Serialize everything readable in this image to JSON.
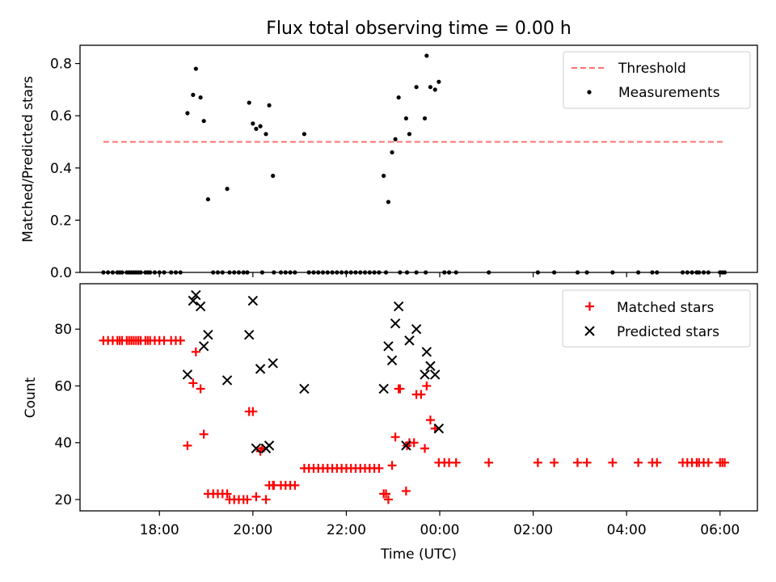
{
  "figure_title": "Flux total observing time = 0.00 h",
  "chart_data": [
    {
      "type": "scatter",
      "ylabel": "Matched/Predicted stars",
      "xlabel": "",
      "ylim": [
        0,
        0.87
      ],
      "yticks": [
        0.0,
        0.2,
        0.4,
        0.6,
        0.8
      ],
      "x_unit": "hours since 00:00 UTC on the first night, 24 = 00:00 next day",
      "xlim": [
        16.3,
        30.8
      ],
      "legend_position": "top-right",
      "legend": [
        "Threshold",
        "Measurements"
      ],
      "threshold": {
        "name": "Threshold",
        "y": 0.5,
        "x": [
          16.8,
          30.1
        ],
        "color": "#ff7070",
        "style": "dashed"
      },
      "series": [
        {
          "name": "Measurements",
          "color": "#000000",
          "marker": "dot",
          "points": [
            [
              16.8,
              0
            ],
            [
              16.9,
              0
            ],
            [
              17.0,
              0
            ],
            [
              17.1,
              0
            ],
            [
              17.15,
              0
            ],
            [
              17.2,
              0
            ],
            [
              17.3,
              0
            ],
            [
              17.35,
              0
            ],
            [
              17.4,
              0
            ],
            [
              17.45,
              0
            ],
            [
              17.5,
              0
            ],
            [
              17.55,
              0
            ],
            [
              17.6,
              0
            ],
            [
              17.7,
              0
            ],
            [
              17.75,
              0
            ],
            [
              17.8,
              0
            ],
            [
              17.9,
              0
            ],
            [
              18.0,
              0
            ],
            [
              18.1,
              0
            ],
            [
              18.25,
              0
            ],
            [
              18.35,
              0
            ],
            [
              18.45,
              0
            ],
            [
              18.6,
              0.61
            ],
            [
              18.72,
              0.68
            ],
            [
              18.78,
              0.78
            ],
            [
              18.88,
              0.67
            ],
            [
              18.95,
              0.58
            ],
            [
              19.04,
              0.28
            ],
            [
              19.15,
              0
            ],
            [
              19.25,
              0
            ],
            [
              19.35,
              0
            ],
            [
              19.5,
              0
            ],
            [
              19.6,
              0
            ],
            [
              19.7,
              0
            ],
            [
              19.8,
              0
            ],
            [
              19.88,
              0
            ],
            [
              19.45,
              0.32
            ],
            [
              19.92,
              0.65
            ],
            [
              20.0,
              0.57
            ],
            [
              20.07,
              0.55
            ],
            [
              20.16,
              0.56
            ],
            [
              20.28,
              0.53
            ],
            [
              20.35,
              0.64
            ],
            [
              20.43,
              0.37
            ],
            [
              20.2,
              0
            ],
            [
              20.45,
              0
            ],
            [
              20.6,
              0
            ],
            [
              20.7,
              0
            ],
            [
              20.8,
              0
            ],
            [
              20.9,
              0
            ],
            [
              21.1,
              0.53
            ],
            [
              21.2,
              0
            ],
            [
              21.3,
              0
            ],
            [
              21.4,
              0
            ],
            [
              21.5,
              0
            ],
            [
              21.6,
              0
            ],
            [
              21.7,
              0
            ],
            [
              21.8,
              0
            ],
            [
              21.9,
              0
            ],
            [
              22.0,
              0
            ],
            [
              22.1,
              0
            ],
            [
              22.2,
              0
            ],
            [
              22.3,
              0
            ],
            [
              22.4,
              0
            ],
            [
              22.5,
              0
            ],
            [
              22.6,
              0
            ],
            [
              22.7,
              0
            ],
            [
              22.8,
              0.37
            ],
            [
              22.9,
              0.27
            ],
            [
              22.98,
              0.46
            ],
            [
              23.05,
              0.51
            ],
            [
              23.12,
              0.67
            ],
            [
              23.28,
              0.59
            ],
            [
              23.35,
              0.53
            ],
            [
              23.5,
              0.71
            ],
            [
              23.68,
              0.59
            ],
            [
              23.72,
              0.83
            ],
            [
              23.8,
              0.71
            ],
            [
              23.9,
              0.7
            ],
            [
              23.98,
              0.73
            ],
            [
              22.85,
              0
            ],
            [
              23.15,
              0
            ],
            [
              23.3,
              0
            ],
            [
              23.5,
              0
            ],
            [
              23.7,
              0
            ],
            [
              24.1,
              0
            ],
            [
              24.2,
              0
            ],
            [
              24.35,
              0
            ],
            [
              25.05,
              0
            ],
            [
              26.1,
              0
            ],
            [
              26.45,
              0
            ],
            [
              26.95,
              0
            ],
            [
              27.15,
              0
            ],
            [
              27.7,
              0
            ],
            [
              28.25,
              0
            ],
            [
              28.55,
              0
            ],
            [
              28.65,
              0
            ],
            [
              29.2,
              0
            ],
            [
              29.3,
              0
            ],
            [
              29.4,
              0
            ],
            [
              29.5,
              0
            ],
            [
              29.55,
              0
            ],
            [
              29.65,
              0
            ],
            [
              29.75,
              0
            ],
            [
              30.0,
              0
            ],
            [
              30.05,
              0
            ],
            [
              30.1,
              0
            ]
          ]
        }
      ]
    },
    {
      "type": "scatter",
      "xlabel": "Time (UTC)",
      "ylabel": "Count",
      "xlim": [
        16.3,
        30.8
      ],
      "ylim": [
        16,
        96
      ],
      "yticks": [
        20,
        40,
        60,
        80
      ],
      "xticks": [
        18,
        20,
        22,
        24,
        26,
        28,
        30
      ],
      "xtick_labels": [
        "18:00",
        "20:00",
        "22:00",
        "00:00",
        "02:00",
        "04:00",
        "06:00"
      ],
      "legend_position": "top-right",
      "legend": [
        "Matched stars",
        "Predicted stars"
      ],
      "series": [
        {
          "name": "Matched stars",
          "color": "#ff0000",
          "marker": "plus",
          "points": [
            [
              16.8,
              76
            ],
            [
              16.9,
              76
            ],
            [
              17.0,
              76
            ],
            [
              17.1,
              76
            ],
            [
              17.15,
              76
            ],
            [
              17.2,
              76
            ],
            [
              17.3,
              76
            ],
            [
              17.35,
              76
            ],
            [
              17.4,
              76
            ],
            [
              17.45,
              76
            ],
            [
              17.5,
              76
            ],
            [
              17.55,
              76
            ],
            [
              17.6,
              76
            ],
            [
              17.7,
              76
            ],
            [
              17.75,
              76
            ],
            [
              17.8,
              76
            ],
            [
              17.9,
              76
            ],
            [
              18.0,
              76
            ],
            [
              18.1,
              76
            ],
            [
              18.25,
              76
            ],
            [
              18.35,
              76
            ],
            [
              18.45,
              76
            ],
            [
              18.6,
              39
            ],
            [
              18.72,
              61
            ],
            [
              18.78,
              72
            ],
            [
              18.88,
              59
            ],
            [
              18.95,
              43
            ],
            [
              19.04,
              22
            ],
            [
              19.15,
              22
            ],
            [
              19.25,
              22
            ],
            [
              19.35,
              22
            ],
            [
              19.5,
              20
            ],
            [
              19.6,
              20
            ],
            [
              19.7,
              20
            ],
            [
              19.8,
              20
            ],
            [
              19.88,
              20
            ],
            [
              19.45,
              22
            ],
            [
              19.92,
              51
            ],
            [
              20.0,
              51
            ],
            [
              20.07,
              21
            ],
            [
              20.16,
              37
            ],
            [
              20.28,
              20
            ],
            [
              20.35,
              25
            ],
            [
              20.43,
              25
            ],
            [
              20.2,
              38
            ],
            [
              20.45,
              25
            ],
            [
              20.6,
              25
            ],
            [
              20.7,
              25
            ],
            [
              20.8,
              25
            ],
            [
              20.9,
              25
            ],
            [
              21.1,
              31
            ],
            [
              21.2,
              31
            ],
            [
              21.3,
              31
            ],
            [
              21.4,
              31
            ],
            [
              21.5,
              31
            ],
            [
              21.6,
              31
            ],
            [
              21.7,
              31
            ],
            [
              21.8,
              31
            ],
            [
              21.9,
              31
            ],
            [
              22.0,
              31
            ],
            [
              22.1,
              31
            ],
            [
              22.2,
              31
            ],
            [
              22.3,
              31
            ],
            [
              22.4,
              31
            ],
            [
              22.5,
              31
            ],
            [
              22.6,
              31
            ],
            [
              22.7,
              31
            ],
            [
              22.8,
              22
            ],
            [
              22.9,
              20
            ],
            [
              22.98,
              32
            ],
            [
              23.05,
              42
            ],
            [
              23.12,
              59
            ],
            [
              23.28,
              23
            ],
            [
              23.35,
              40
            ],
            [
              23.5,
              57
            ],
            [
              23.68,
              38
            ],
            [
              23.72,
              60
            ],
            [
              23.8,
              48
            ],
            [
              23.9,
              45
            ],
            [
              23.98,
              33
            ],
            [
              22.85,
              22
            ],
            [
              23.15,
              59
            ],
            [
              23.3,
              39
            ],
            [
              23.45,
              40
            ],
            [
              23.6,
              57
            ],
            [
              24.1,
              33
            ],
            [
              24.2,
              33
            ],
            [
              24.35,
              33
            ],
            [
              25.05,
              33
            ],
            [
              26.1,
              33
            ],
            [
              26.45,
              33
            ],
            [
              26.95,
              33
            ],
            [
              27.15,
              33
            ],
            [
              27.7,
              33
            ],
            [
              28.25,
              33
            ],
            [
              28.55,
              33
            ],
            [
              28.65,
              33
            ],
            [
              29.2,
              33
            ],
            [
              29.3,
              33
            ],
            [
              29.4,
              33
            ],
            [
              29.5,
              33
            ],
            [
              29.55,
              33
            ],
            [
              29.65,
              33
            ],
            [
              29.75,
              33
            ],
            [
              30.0,
              33
            ],
            [
              30.05,
              33
            ],
            [
              30.1,
              33
            ]
          ]
        },
        {
          "name": "Predicted stars",
          "color": "#000000",
          "marker": "x",
          "points": [
            [
              18.6,
              64
            ],
            [
              18.72,
              90
            ],
            [
              18.78,
              92
            ],
            [
              18.88,
              88
            ],
            [
              18.95,
              74
            ],
            [
              19.04,
              78
            ],
            [
              19.45,
              62
            ],
            [
              19.92,
              78
            ],
            [
              20.0,
              90
            ],
            [
              20.07,
              38
            ],
            [
              20.16,
              66
            ],
            [
              20.28,
              38
            ],
            [
              20.35,
              39
            ],
            [
              20.43,
              68
            ],
            [
              21.1,
              59
            ],
            [
              22.8,
              59
            ],
            [
              22.9,
              74
            ],
            [
              22.98,
              69
            ],
            [
              23.05,
              82
            ],
            [
              23.12,
              88
            ],
            [
              23.28,
              39
            ],
            [
              23.35,
              76
            ],
            [
              23.5,
              80
            ],
            [
              23.68,
              64
            ],
            [
              23.72,
              72
            ],
            [
              23.8,
              67
            ],
            [
              23.9,
              64
            ],
            [
              23.98,
              45
            ]
          ]
        }
      ]
    }
  ]
}
